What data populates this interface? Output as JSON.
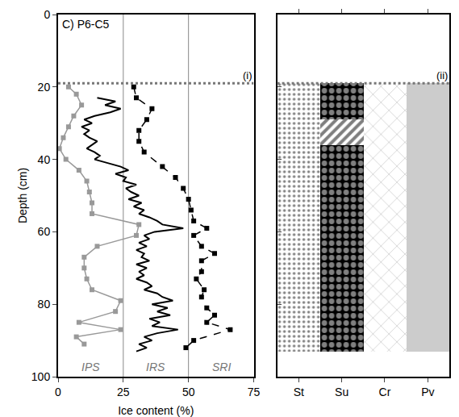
{
  "chart_data": [
    {
      "type": "line",
      "title": "C) P6-C5",
      "x_label": "Ice content (%)",
      "y_label": "Depth (cm)",
      "xlim": [
        0,
        75
      ],
      "xticks": [
        0,
        25,
        50,
        75
      ],
      "ylim": [
        100,
        0
      ],
      "yticks": [
        0,
        20,
        40,
        60,
        80,
        100
      ],
      "reference_lines": [
        25,
        50
      ],
      "boundary_depth": 19,
      "boundary_label": "(i)",
      "series": [
        {
          "name": "IPS",
          "color": "#999999",
          "marker": "square",
          "line_style": "solid",
          "y": [
            20,
            22,
            25,
            28,
            31,
            34,
            37,
            40,
            43,
            46,
            49,
            52,
            55,
            58,
            61,
            64,
            67,
            70,
            73,
            76,
            79,
            82,
            85,
            87,
            89,
            91
          ],
          "values": [
            4,
            7,
            9,
            6,
            4,
            2,
            0.5,
            3,
            8,
            11,
            12,
            13,
            13,
            31,
            30,
            15,
            10,
            10,
            11,
            13,
            24,
            22,
            8,
            24,
            7,
            10
          ]
        },
        {
          "name": "IRS",
          "color": "#000000",
          "marker": "none",
          "line_style": "solid",
          "y": [
            23,
            24,
            25,
            26,
            27,
            28,
            29,
            30,
            31,
            32,
            33,
            34,
            35,
            36,
            37,
            38,
            39,
            40,
            41,
            42,
            43,
            44,
            45,
            46,
            47,
            48,
            49,
            50,
            51,
            52,
            53,
            54,
            55,
            56,
            57,
            58,
            59,
            60,
            61,
            62,
            63,
            64,
            65,
            66,
            67,
            68,
            69,
            70,
            71,
            72,
            73,
            74,
            75,
            76,
            77,
            78,
            79,
            80,
            81,
            82,
            83,
            84,
            85,
            86,
            87,
            88,
            89,
            90,
            91,
            92,
            93
          ],
          "values": [
            15,
            22,
            18,
            24,
            20,
            14,
            10,
            13,
            9,
            12,
            10,
            12,
            15,
            13,
            11,
            14,
            16,
            14,
            19,
            24,
            27,
            22,
            26,
            25,
            30,
            26,
            28,
            31,
            27,
            32,
            29,
            33,
            31,
            35,
            38,
            40,
            48,
            37,
            33,
            35,
            31,
            34,
            30,
            33,
            32,
            35,
            30,
            34,
            31,
            33,
            30,
            34,
            36,
            33,
            38,
            40,
            44,
            36,
            42,
            38,
            43,
            35,
            39,
            36,
            46,
            38,
            33,
            36,
            31,
            34,
            30
          ]
        },
        {
          "name": "SRI",
          "color": "#000000",
          "marker": "square",
          "line_style": "dash",
          "y": [
            20,
            23,
            26,
            29,
            32,
            35,
            38,
            42,
            45,
            48,
            51,
            54,
            57,
            59,
            61,
            64,
            66,
            68,
            71,
            73,
            76,
            78,
            81,
            83,
            85,
            87,
            90,
            92
          ],
          "values": [
            29,
            30,
            36,
            34,
            31,
            31,
            33,
            40,
            45,
            48,
            50,
            51,
            52,
            57,
            52,
            55,
            60,
            55,
            55,
            53,
            56,
            55,
            57,
            60,
            57,
            66,
            52,
            49
          ]
        }
      ]
    },
    {
      "type": "strip",
      "categories": [
        "St",
        "Su",
        "Cr",
        "Pv"
      ],
      "ylim": [
        100,
        0
      ],
      "yticks": [
        0,
        20,
        40,
        60,
        80,
        100
      ],
      "tick_labels": "x",
      "boundary_depth": 19,
      "boundary_label": "(ii)",
      "segments": [
        {
          "category": "St",
          "top": 19,
          "bottom": 93,
          "marker": "dots"
        },
        {
          "category": "Su",
          "top": 19,
          "bottom": 29,
          "marker": "circles"
        },
        {
          "category": "Su",
          "top": 29,
          "bottom": 36,
          "marker": "hatch"
        },
        {
          "category": "Su",
          "top": 36,
          "bottom": 93,
          "marker": "circles"
        },
        {
          "category": "Cr",
          "top": 19,
          "bottom": 93,
          "marker": "ellipses"
        },
        {
          "category": "Pv",
          "top": 19,
          "bottom": 93,
          "marker": "solid"
        }
      ]
    }
  ]
}
